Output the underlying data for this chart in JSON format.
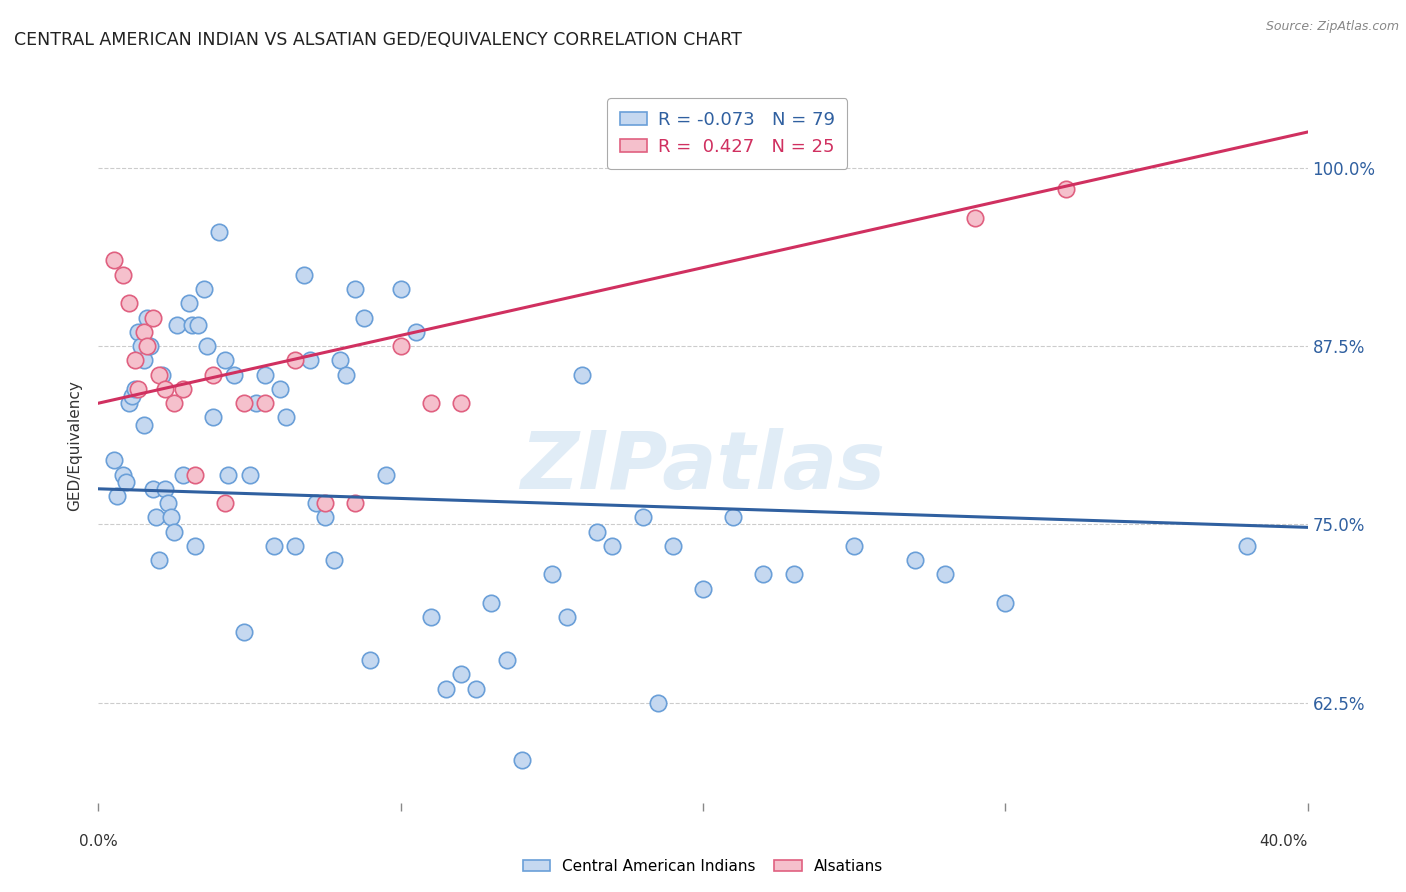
{
  "title": "CENTRAL AMERICAN INDIAN VS ALSATIAN GED/EQUIVALENCY CORRELATION CHART",
  "source": "Source: ZipAtlas.com",
  "ylabel": "GED/Equivalency",
  "yticks": [
    "62.5%",
    "75.0%",
    "87.5%",
    "100.0%"
  ],
  "ytick_vals": [
    0.625,
    0.75,
    0.875,
    1.0
  ],
  "xlim": [
    0.0,
    0.4
  ],
  "ylim": [
    0.555,
    1.055
  ],
  "legend_blue_r": "-0.073",
  "legend_blue_n": "79",
  "legend_pink_r": "0.427",
  "legend_pink_n": "25",
  "blue_fill": "#c5d8f0",
  "pink_fill": "#f5c0cc",
  "blue_edge": "#6a9fd8",
  "pink_edge": "#e06080",
  "blue_line_color": "#3060a0",
  "pink_line_color": "#d03060",
  "watermark": "ZIPatlas",
  "blue_scatter_x": [
    0.005,
    0.006,
    0.008,
    0.009,
    0.01,
    0.011,
    0.012,
    0.013,
    0.014,
    0.015,
    0.015,
    0.016,
    0.017,
    0.018,
    0.019,
    0.02,
    0.021,
    0.022,
    0.023,
    0.024,
    0.025,
    0.026,
    0.028,
    0.03,
    0.031,
    0.032,
    0.033,
    0.035,
    0.036,
    0.038,
    0.04,
    0.042,
    0.043,
    0.045,
    0.048,
    0.05,
    0.052,
    0.055,
    0.058,
    0.06,
    0.062,
    0.065,
    0.068,
    0.07,
    0.072,
    0.075,
    0.078,
    0.08,
    0.082,
    0.085,
    0.088,
    0.09,
    0.095,
    0.1,
    0.105,
    0.11,
    0.115,
    0.12,
    0.125,
    0.13,
    0.135,
    0.14,
    0.15,
    0.155,
    0.16,
    0.165,
    0.17,
    0.18,
    0.185,
    0.19,
    0.2,
    0.21,
    0.22,
    0.23,
    0.25,
    0.27,
    0.28,
    0.3,
    0.38
  ],
  "blue_scatter_y": [
    0.795,
    0.77,
    0.785,
    0.78,
    0.835,
    0.84,
    0.845,
    0.885,
    0.875,
    0.865,
    0.82,
    0.895,
    0.875,
    0.775,
    0.755,
    0.725,
    0.855,
    0.775,
    0.765,
    0.755,
    0.745,
    0.89,
    0.785,
    0.905,
    0.89,
    0.735,
    0.89,
    0.915,
    0.875,
    0.825,
    0.955,
    0.865,
    0.785,
    0.855,
    0.675,
    0.785,
    0.835,
    0.855,
    0.735,
    0.845,
    0.825,
    0.735,
    0.925,
    0.865,
    0.765,
    0.755,
    0.725,
    0.865,
    0.855,
    0.915,
    0.895,
    0.655,
    0.785,
    0.915,
    0.885,
    0.685,
    0.635,
    0.645,
    0.635,
    0.695,
    0.655,
    0.585,
    0.715,
    0.685,
    0.855,
    0.745,
    0.735,
    0.755,
    0.625,
    0.735,
    0.705,
    0.755,
    0.715,
    0.715,
    0.735,
    0.725,
    0.715,
    0.695,
    0.735
  ],
  "pink_scatter_x": [
    0.005,
    0.008,
    0.01,
    0.012,
    0.013,
    0.015,
    0.016,
    0.018,
    0.02,
    0.022,
    0.025,
    0.028,
    0.032,
    0.038,
    0.042,
    0.048,
    0.055,
    0.065,
    0.075,
    0.085,
    0.1,
    0.11,
    0.12,
    0.29,
    0.32
  ],
  "pink_scatter_y": [
    0.935,
    0.925,
    0.905,
    0.865,
    0.845,
    0.885,
    0.875,
    0.895,
    0.855,
    0.845,
    0.835,
    0.845,
    0.785,
    0.855,
    0.765,
    0.835,
    0.835,
    0.865,
    0.765,
    0.765,
    0.875,
    0.835,
    0.835,
    0.965,
    0.985
  ],
  "blue_line_x": [
    0.0,
    0.4
  ],
  "blue_line_y": [
    0.775,
    0.748
  ],
  "pink_line_x": [
    0.0,
    0.4
  ],
  "pink_line_y": [
    0.835,
    1.025
  ]
}
